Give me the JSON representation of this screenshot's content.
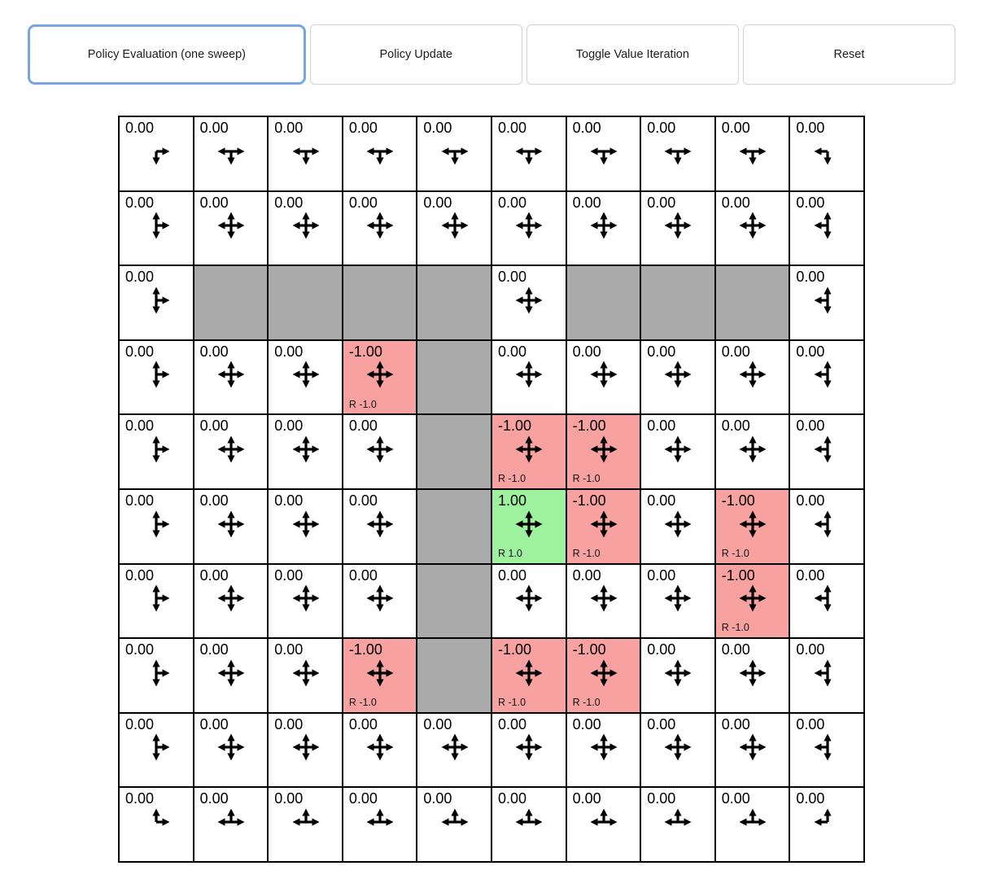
{
  "toolbar": {
    "buttons": [
      {
        "label": "Policy Evaluation (one sweep)",
        "active": true
      },
      {
        "label": "Policy Update",
        "active": false
      },
      {
        "label": "Toggle Value Iteration",
        "active": false
      },
      {
        "label": "Reset",
        "active": false
      }
    ]
  },
  "colors": {
    "wall": "#AAAAAA",
    "negative": "#F7A1A1",
    "positive": "#9EF29E",
    "focus_ring": "#78A4E8",
    "grid_line": "#000000",
    "arrow": "#000000"
  },
  "grid": {
    "rows": 10,
    "cols": 10,
    "cells": [
      [
        {
          "v": "0.00",
          "d": "dr"
        },
        {
          "v": "0.00",
          "d": "ldr"
        },
        {
          "v": "0.00",
          "d": "ldr"
        },
        {
          "v": "0.00",
          "d": "ldr"
        },
        {
          "v": "0.00",
          "d": "ldr"
        },
        {
          "v": "0.00",
          "d": "ldr"
        },
        {
          "v": "0.00",
          "d": "ldr"
        },
        {
          "v": "0.00",
          "d": "ldr"
        },
        {
          "v": "0.00",
          "d": "ldr"
        },
        {
          "v": "0.00",
          "d": "ld"
        }
      ],
      [
        {
          "v": "0.00",
          "d": "udr"
        },
        {
          "v": "0.00",
          "d": "udlr"
        },
        {
          "v": "0.00",
          "d": "udlr"
        },
        {
          "v": "0.00",
          "d": "udlr"
        },
        {
          "v": "0.00",
          "d": "udlr"
        },
        {
          "v": "0.00",
          "d": "udlr"
        },
        {
          "v": "0.00",
          "d": "udlr"
        },
        {
          "v": "0.00",
          "d": "udlr"
        },
        {
          "v": "0.00",
          "d": "udlr"
        },
        {
          "v": "0.00",
          "d": "udl"
        }
      ],
      [
        {
          "v": "0.00",
          "d": "udr"
        },
        {
          "wall": true
        },
        {
          "wall": true
        },
        {
          "wall": true
        },
        {
          "wall": true
        },
        {
          "v": "0.00",
          "d": "udlr"
        },
        {
          "wall": true
        },
        {
          "wall": true
        },
        {
          "wall": true
        },
        {
          "v": "0.00",
          "d": "udl"
        }
      ],
      [
        {
          "v": "0.00",
          "d": "udr"
        },
        {
          "v": "0.00",
          "d": "udlr"
        },
        {
          "v": "0.00",
          "d": "udlr"
        },
        {
          "v": "-1.00",
          "d": "udlr",
          "bg": "neg",
          "reward": "R -1.0"
        },
        {
          "wall": true
        },
        {
          "v": "0.00",
          "d": "udlr"
        },
        {
          "v": "0.00",
          "d": "udlr"
        },
        {
          "v": "0.00",
          "d": "udlr"
        },
        {
          "v": "0.00",
          "d": "udlr"
        },
        {
          "v": "0.00",
          "d": "udl"
        }
      ],
      [
        {
          "v": "0.00",
          "d": "udr"
        },
        {
          "v": "0.00",
          "d": "udlr"
        },
        {
          "v": "0.00",
          "d": "udlr"
        },
        {
          "v": "0.00",
          "d": "udlr"
        },
        {
          "wall": true
        },
        {
          "v": "-1.00",
          "d": "udlr",
          "bg": "neg",
          "reward": "R -1.0"
        },
        {
          "v": "-1.00",
          "d": "udlr",
          "bg": "neg",
          "reward": "R -1.0"
        },
        {
          "v": "0.00",
          "d": "udlr"
        },
        {
          "v": "0.00",
          "d": "udlr"
        },
        {
          "v": "0.00",
          "d": "udl"
        }
      ],
      [
        {
          "v": "0.00",
          "d": "udr"
        },
        {
          "v": "0.00",
          "d": "udlr"
        },
        {
          "v": "0.00",
          "d": "udlr"
        },
        {
          "v": "0.00",
          "d": "udlr"
        },
        {
          "wall": true
        },
        {
          "v": "1.00",
          "d": "udlr",
          "bg": "pos",
          "reward": "R 1.0"
        },
        {
          "v": "-1.00",
          "d": "udlr",
          "bg": "neg",
          "reward": "R -1.0"
        },
        {
          "v": "0.00",
          "d": "udlr"
        },
        {
          "v": "-1.00",
          "d": "udlr",
          "bg": "neg",
          "reward": "R -1.0"
        },
        {
          "v": "0.00",
          "d": "udl"
        }
      ],
      [
        {
          "v": "0.00",
          "d": "udr"
        },
        {
          "v": "0.00",
          "d": "udlr"
        },
        {
          "v": "0.00",
          "d": "udlr"
        },
        {
          "v": "0.00",
          "d": "udlr"
        },
        {
          "wall": true
        },
        {
          "v": "0.00",
          "d": "udlr"
        },
        {
          "v": "0.00",
          "d": "udlr"
        },
        {
          "v": "0.00",
          "d": "udlr"
        },
        {
          "v": "-1.00",
          "d": "udlr",
          "bg": "neg",
          "reward": "R -1.0"
        },
        {
          "v": "0.00",
          "d": "udl"
        }
      ],
      [
        {
          "v": "0.00",
          "d": "udr"
        },
        {
          "v": "0.00",
          "d": "udlr"
        },
        {
          "v": "0.00",
          "d": "udlr"
        },
        {
          "v": "-1.00",
          "d": "udlr",
          "bg": "neg",
          "reward": "R -1.0"
        },
        {
          "wall": true
        },
        {
          "v": "-1.00",
          "d": "udlr",
          "bg": "neg",
          "reward": "R -1.0"
        },
        {
          "v": "-1.00",
          "d": "udlr",
          "bg": "neg",
          "reward": "R -1.0"
        },
        {
          "v": "0.00",
          "d": "udlr"
        },
        {
          "v": "0.00",
          "d": "udlr"
        },
        {
          "v": "0.00",
          "d": "udl"
        }
      ],
      [
        {
          "v": "0.00",
          "d": "udr"
        },
        {
          "v": "0.00",
          "d": "udlr"
        },
        {
          "v": "0.00",
          "d": "udlr"
        },
        {
          "v": "0.00",
          "d": "udlr"
        },
        {
          "v": "0.00",
          "d": "udlr"
        },
        {
          "v": "0.00",
          "d": "udlr"
        },
        {
          "v": "0.00",
          "d": "udlr"
        },
        {
          "v": "0.00",
          "d": "udlr"
        },
        {
          "v": "0.00",
          "d": "udlr"
        },
        {
          "v": "0.00",
          "d": "udl"
        }
      ],
      [
        {
          "v": "0.00",
          "d": "ur"
        },
        {
          "v": "0.00",
          "d": "ulr"
        },
        {
          "v": "0.00",
          "d": "ulr"
        },
        {
          "v": "0.00",
          "d": "ulr"
        },
        {
          "v": "0.00",
          "d": "ulr"
        },
        {
          "v": "0.00",
          "d": "ulr"
        },
        {
          "v": "0.00",
          "d": "ulr"
        },
        {
          "v": "0.00",
          "d": "ulr"
        },
        {
          "v": "0.00",
          "d": "ulr"
        },
        {
          "v": "0.00",
          "d": "ul"
        }
      ]
    ]
  }
}
